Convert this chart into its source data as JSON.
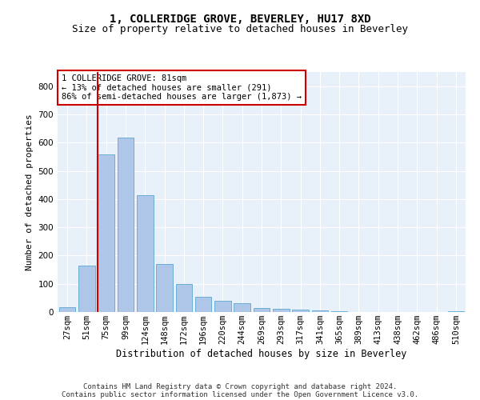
{
  "title1": "1, COLLERIDGE GROVE, BEVERLEY, HU17 8XD",
  "title2": "Size of property relative to detached houses in Beverley",
  "xlabel": "Distribution of detached houses by size in Beverley",
  "ylabel": "Number of detached properties",
  "categories": [
    "27sqm",
    "51sqm",
    "75sqm",
    "99sqm",
    "124sqm",
    "148sqm",
    "172sqm",
    "196sqm",
    "220sqm",
    "244sqm",
    "269sqm",
    "293sqm",
    "317sqm",
    "341sqm",
    "365sqm",
    "389sqm",
    "413sqm",
    "438sqm",
    "462sqm",
    "486sqm",
    "510sqm"
  ],
  "values": [
    18,
    163,
    558,
    617,
    413,
    170,
    100,
    53,
    40,
    30,
    13,
    10,
    8,
    5,
    3,
    0,
    0,
    0,
    0,
    0,
    3
  ],
  "bar_color": "#aec6e8",
  "bar_edge_color": "#6baed6",
  "vline_color": "#cc0000",
  "vline_xindex": 2,
  "annotation_line1": "1 COLLERIDGE GROVE: 81sqm",
  "annotation_line2": "← 13% of detached houses are smaller (291)",
  "annotation_line3": "86% of semi-detached houses are larger (1,873) →",
  "annotation_box_color": "#ffffff",
  "annotation_box_edgecolor": "#cc0000",
  "ylim": [
    0,
    850
  ],
  "yticks": [
    0,
    100,
    200,
    300,
    400,
    500,
    600,
    700,
    800
  ],
  "background_color": "#e8f0fa",
  "grid_color": "#ffffff",
  "footer_line1": "Contains HM Land Registry data © Crown copyright and database right 2024.",
  "footer_line2": "Contains public sector information licensed under the Open Government Licence v3.0.",
  "title1_fontsize": 10,
  "title2_fontsize": 9,
  "xlabel_fontsize": 8.5,
  "ylabel_fontsize": 8,
  "tick_fontsize": 7.5,
  "annotation_fontsize": 7.5,
  "footer_fontsize": 6.5
}
